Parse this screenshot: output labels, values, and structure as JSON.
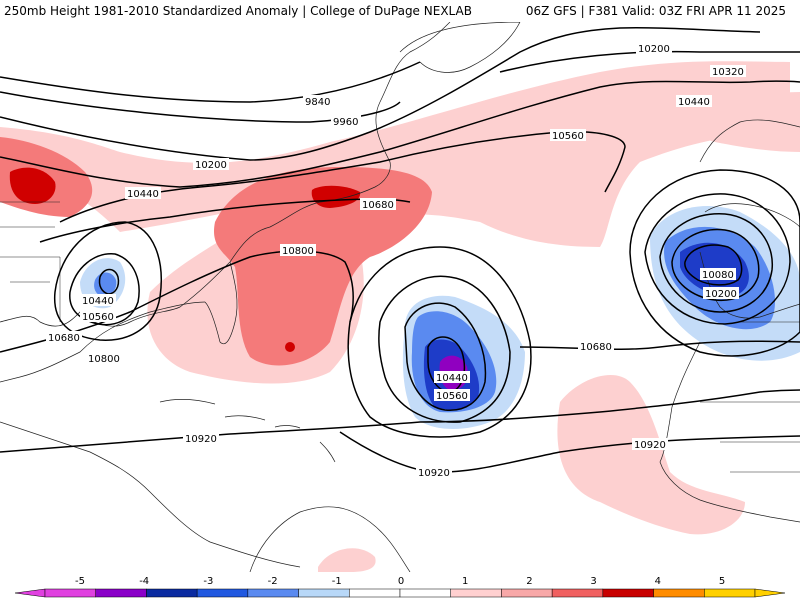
{
  "header": {
    "title": "250mb Height 1981-2010 Standardized Anomaly | College of DuPage NEXLAB",
    "run_info": "06Z GFS | F381 Valid: 03Z FRI APR 11 2025"
  },
  "contour_labels": [
    {
      "id": "c10200-ne",
      "text": "10200"
    },
    {
      "id": "c10320",
      "text": "10320"
    },
    {
      "id": "c10440-ne",
      "text": "10440"
    },
    {
      "id": "c9840",
      "text": "9840"
    },
    {
      "id": "c9960",
      "text": "9960"
    },
    {
      "id": "c10200-nw",
      "text": "10200"
    },
    {
      "id": "c10440-w",
      "text": "10440"
    },
    {
      "id": "c10560-n",
      "text": "10560"
    },
    {
      "id": "c10680-ne",
      "text": "10680"
    },
    {
      "id": "c10800",
      "text": "10800"
    },
    {
      "id": "c10440-gulf",
      "text": "10440"
    },
    {
      "id": "c10560-gulf",
      "text": "10560"
    },
    {
      "id": "c10680-w",
      "text": "10680"
    },
    {
      "id": "c10800-w",
      "text": "10800"
    },
    {
      "id": "c10440-atl",
      "text": "10440"
    },
    {
      "id": "c10560-atl",
      "text": "10560"
    },
    {
      "id": "c10680-e",
      "text": "10680"
    },
    {
      "id": "c10080",
      "text": "10080"
    },
    {
      "id": "c10200-e",
      "text": "10200"
    },
    {
      "id": "c10920-w",
      "text": "10920"
    },
    {
      "id": "c10920-c",
      "text": "10920"
    },
    {
      "id": "c10920-e",
      "text": "10920"
    }
  ],
  "colorbar": {
    "ticks": [
      "-5",
      "-4",
      "-3",
      "-2",
      "-1",
      "0",
      "1",
      "2",
      "3",
      "4",
      "5"
    ],
    "colors": [
      "#e040e0",
      "#8a00c8",
      "#0a2aa0",
      "#2058e0",
      "#5a8af0",
      "#b8d8f8",
      "#ffffff",
      "#ffffff",
      "#ffd0d0",
      "#f8a8a8",
      "#f06060",
      "#c80000",
      "#ff8c00",
      "#ffd000"
    ]
  },
  "colors": {
    "pos_light": "#fdd0d0",
    "pos_mid": "#f48080",
    "pos_strong": "#d00000",
    "neg_light": "#c4dcf8",
    "neg_mid": "#5a8af0",
    "neg_strong": "#1e3cc8",
    "neg_extreme": "#9000c0"
  }
}
